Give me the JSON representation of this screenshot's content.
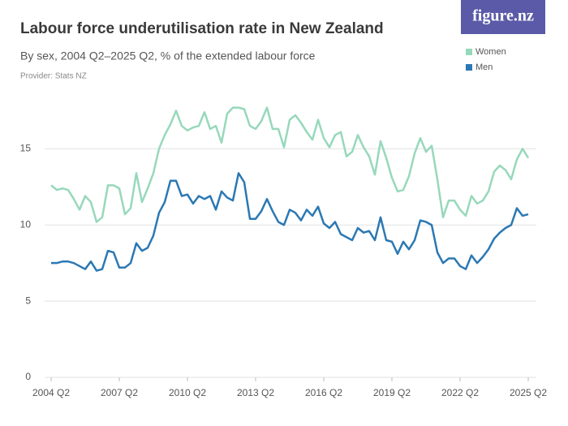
{
  "chart_data": {
    "type": "line",
    "title": "Labour force underutilisation rate in New Zealand",
    "subtitle": "By sex, 2004 Q2–2025 Q2, % of the extended labour force",
    "provider": "Provider: Stats NZ",
    "logo": "figure.nz",
    "categories": [
      "2004 Q2",
      null,
      null,
      null,
      null,
      null,
      null,
      null,
      null,
      null,
      null,
      null,
      "2007 Q2",
      null,
      null,
      null,
      null,
      null,
      null,
      null,
      null,
      null,
      null,
      null,
      "2010 Q2",
      null,
      null,
      null,
      null,
      null,
      null,
      null,
      null,
      null,
      null,
      null,
      "2013 Q2",
      null,
      null,
      null,
      null,
      null,
      null,
      null,
      null,
      null,
      null,
      null,
      "2016 Q2",
      null,
      null,
      null,
      null,
      null,
      null,
      null,
      null,
      null,
      null,
      null,
      "2019 Q2",
      null,
      null,
      null,
      null,
      null,
      null,
      null,
      null,
      null,
      null,
      null,
      "2022 Q2",
      null,
      null,
      null,
      null,
      null,
      null,
      null,
      null,
      null,
      null,
      null,
      "2025 Q2"
    ],
    "series": [
      {
        "name": "Women",
        "color": "#97d8bb",
        "values": [
          12.6,
          12.3,
          12.4,
          12.3,
          11.7,
          11.0,
          11.9,
          11.5,
          10.2,
          10.5,
          12.6,
          12.6,
          12.4,
          10.7,
          11.1,
          13.4,
          11.5,
          12.4,
          13.4,
          15.0,
          15.9,
          16.6,
          17.5,
          16.5,
          16.2,
          16.4,
          16.5,
          17.4,
          16.3,
          16.5,
          15.4,
          17.3,
          17.7,
          17.7,
          17.6,
          16.5,
          16.3,
          16.8,
          17.7,
          16.3,
          16.3,
          15.1,
          16.9,
          17.2,
          16.7,
          16.1,
          15.6,
          16.9,
          15.7,
          15.1,
          15.9,
          16.1,
          14.5,
          14.8,
          15.9,
          15.1,
          14.5,
          13.3,
          15.5,
          14.4,
          13.1,
          12.2,
          12.3,
          13.2,
          14.7,
          15.7,
          14.8,
          15.2,
          13.0,
          10.5,
          11.6,
          11.6,
          11.0,
          10.6,
          11.9,
          11.4,
          11.6,
          12.2,
          13.5,
          13.9,
          13.6,
          13.0,
          14.3,
          15.0,
          14.4
        ]
      },
      {
        "name": "Men",
        "color": "#2b78b3",
        "values": [
          7.5,
          7.5,
          7.6,
          7.6,
          7.5,
          7.3,
          7.1,
          7.6,
          7.0,
          7.1,
          8.3,
          8.2,
          7.2,
          7.2,
          7.5,
          8.8,
          8.3,
          8.5,
          9.3,
          10.8,
          11.5,
          12.9,
          12.9,
          11.9,
          12.0,
          11.4,
          11.9,
          11.7,
          11.9,
          11.0,
          12.2,
          11.8,
          11.6,
          13.4,
          12.8,
          10.4,
          10.4,
          10.9,
          11.7,
          10.9,
          10.2,
          10.0,
          11.0,
          10.8,
          10.3,
          11.0,
          10.6,
          11.2,
          10.1,
          9.8,
          10.2,
          9.4,
          9.2,
          9.0,
          9.8,
          9.5,
          9.6,
          9.0,
          10.5,
          9.0,
          8.9,
          8.1,
          8.9,
          8.4,
          9.0,
          10.3,
          10.2,
          10.0,
          8.2,
          7.5,
          7.8,
          7.8,
          7.3,
          7.1,
          8.0,
          7.5,
          7.9,
          8.4,
          9.1,
          9.5,
          9.8,
          10.0,
          11.1,
          10.6,
          10.7
        ]
      }
    ],
    "ylim": [
      0,
      18
    ],
    "yticks": [
      0,
      5,
      10,
      15
    ],
    "grid": true,
    "legend": "top-right"
  }
}
